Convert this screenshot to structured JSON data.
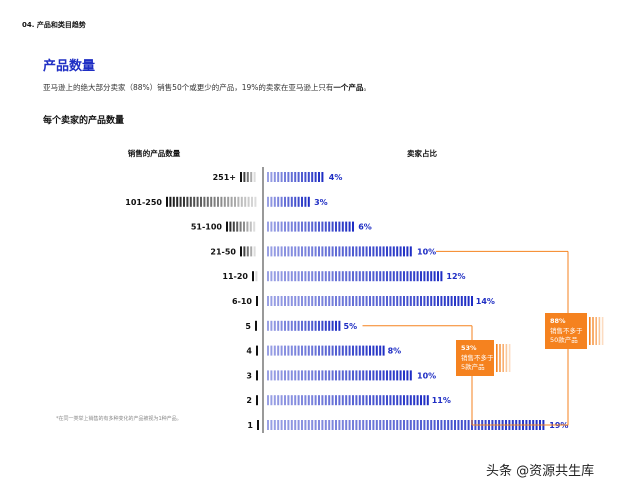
{
  "header": {
    "section_label": "04. 产品和类目趋势",
    "title": "产品数量",
    "subtitle_pre": "亚马逊上的绝大部分卖家（88%）销售50个或更少的产品，19%的卖家在亚马逊上只有",
    "subtitle_bold": "一个产品",
    "subtitle_post": "。",
    "chart_title": "每个卖家的产品数量"
  },
  "footnote": "*在同一类举上销售的有多种变化的产品被视为1种产品。",
  "watermark": "头条 @资源共生库",
  "colors": {
    "blue": "#1f2ec4",
    "orange": "#f5821f",
    "black": "#111111"
  },
  "chart_data": {
    "type": "bar",
    "left_header": "销售的产品数量",
    "right_header": "卖家占比",
    "categories": [
      "251+",
      "101-250",
      "51-100",
      "21-50",
      "11-20",
      "6-10",
      "5",
      "4",
      "3",
      "2",
      "1"
    ],
    "values": [
      4,
      3,
      6,
      10,
      12,
      14,
      5,
      8,
      10,
      11,
      19
    ],
    "value_labels": [
      "4%",
      "3%",
      "6%",
      "10%",
      "12%",
      "14%",
      "5%",
      "8%",
      "10%",
      "11%",
      "19%"
    ],
    "annotations": [
      {
        "pct": "53%",
        "line1": "销售不多于",
        "line2": "5款产品"
      },
      {
        "pct": "88%",
        "line1": "销售不多于",
        "line2": "50款产品"
      }
    ]
  }
}
